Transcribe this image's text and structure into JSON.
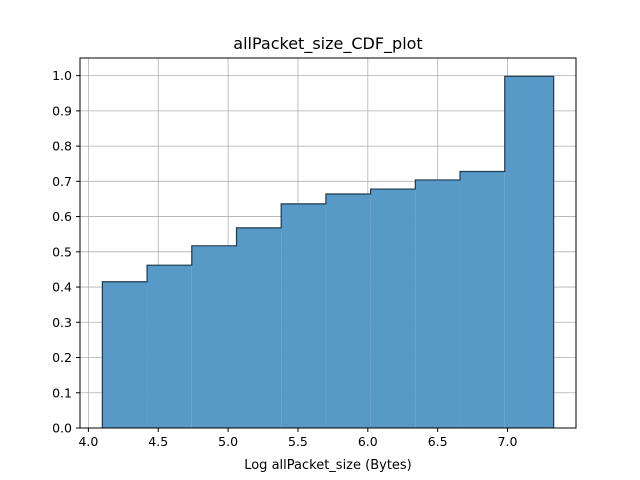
{
  "chart_data": {
    "type": "bar",
    "title": "allPacket_size_CDF_plot",
    "xlabel": "Log allPacket_size (Bytes)",
    "ylabel": "",
    "xlim": [
      3.94,
      7.49
    ],
    "ylim": [
      0.0,
      1.05
    ],
    "xticks": [
      4.0,
      4.5,
      5.0,
      5.5,
      6.0,
      6.5,
      7.0
    ],
    "xtick_labels": [
      "4.0",
      "4.5",
      "5.0",
      "5.5",
      "6.0",
      "6.5",
      "7.0"
    ],
    "yticks": [
      0.0,
      0.1,
      0.2,
      0.3,
      0.4,
      0.5,
      0.6,
      0.7,
      0.8,
      0.9,
      1.0
    ],
    "ytick_labels": [
      "0.0",
      "0.1",
      "0.2",
      "0.3",
      "0.4",
      "0.5",
      "0.6",
      "0.7",
      "0.8",
      "0.9",
      "1.0"
    ],
    "grid": true,
    "legend": "none",
    "bar_color": "#5799c7",
    "edge_color": "#1f3a4d",
    "bins": [
      {
        "x0": 4.1,
        "x1": 4.42,
        "value": 0.415
      },
      {
        "x0": 4.42,
        "x1": 4.74,
        "value": 0.462
      },
      {
        "x0": 4.74,
        "x1": 5.06,
        "value": 0.517
      },
      {
        "x0": 5.06,
        "x1": 5.38,
        "value": 0.568
      },
      {
        "x0": 5.38,
        "x1": 5.7,
        "value": 0.636
      },
      {
        "x0": 5.7,
        "x1": 6.02,
        "value": 0.664
      },
      {
        "x0": 6.02,
        "x1": 6.34,
        "value": 0.678
      },
      {
        "x0": 6.34,
        "x1": 6.66,
        "value": 0.704
      },
      {
        "x0": 6.66,
        "x1": 6.98,
        "value": 0.728
      },
      {
        "x0": 6.98,
        "x1": 7.33,
        "value": 0.998
      }
    ]
  }
}
